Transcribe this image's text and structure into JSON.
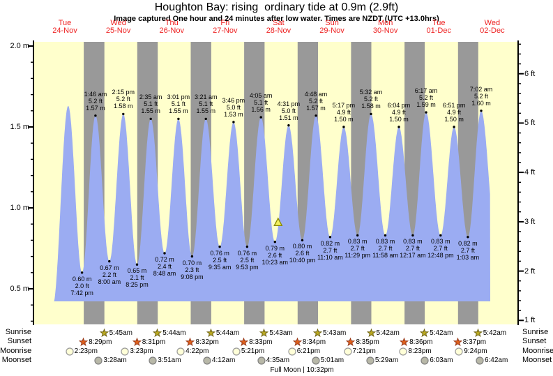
{
  "header": {
    "title": "Houghton Bay: rising  ordinary tide at 0.9m (2.9ft)",
    "subtitle": "Image captured One hour and 24 minutes after low water. Times are NZDT (UTC +13.0hrs)"
  },
  "colors": {
    "plot_background": "#ffffcc",
    "night_band": "#999999",
    "tide_area": "#9bacf2",
    "day_label_red": "#ee2222",
    "axis_black": "#000000",
    "marker_fill": "#f2ef5e",
    "marker_stroke": "#8a8a00",
    "sunrise_star_fill": "#b9a820",
    "sunrise_star_stroke": "#6f6414",
    "sunset_star_fill": "#e0601c",
    "sunset_star_stroke": "#973818",
    "moonrise_circle_fill": "#ffffd8",
    "moonrise_circle_stroke": "#999999",
    "moonset_circle_fill": "#b8b8a8",
    "moonset_circle_stroke": "#808080"
  },
  "chart_data": {
    "type": "area",
    "title": "Houghton Bay: rising ordinary tide at 0.9m (2.9ft)",
    "ylabel_left_unit": "m",
    "ylabel_right_unit": "ft",
    "ylim_m": [
      0.29,
      2.03
    ],
    "grid": false,
    "days": [
      {
        "name": "Tue",
        "date": "24-Nov"
      },
      {
        "name": "Wed",
        "date": "25-Nov"
      },
      {
        "name": "Thu",
        "date": "26-Nov"
      },
      {
        "name": "Fri",
        "date": "27-Nov"
      },
      {
        "name": "Sat",
        "date": "28-Nov"
      },
      {
        "name": "Sun",
        "date": "29-Nov"
      },
      {
        "name": "Mon",
        "date": "30-Nov"
      },
      {
        "name": "Tue",
        "date": "01-Dec"
      },
      {
        "name": "Wed",
        "date": "02-Dec"
      }
    ],
    "y_ticks_left": [
      {
        "label": "0.5 m",
        "value": 0.5
      },
      {
        "label": "1.0 m",
        "value": 1.0
      },
      {
        "label": "1.5 m",
        "value": 1.5
      },
      {
        "label": "2.0 m",
        "value": 2.0
      }
    ],
    "y_ticks_right": [
      {
        "label": "1 ft",
        "value": 1
      },
      {
        "label": "2 ft",
        "value": 2
      },
      {
        "label": "3 ft",
        "value": 3
      },
      {
        "label": "4 ft",
        "value": 4
      },
      {
        "label": "5 ft",
        "value": 5
      },
      {
        "label": "6 ft",
        "value": 6
      }
    ],
    "curve_end_t": 203.1,
    "extremes": [
      {
        "t": 6.6,
        "h": 0.4,
        "type": "low",
        "labeled": false
      },
      {
        "t": 13.5,
        "h": 1.63,
        "type": "high",
        "labeled": false
      },
      {
        "t": 19.7,
        "h": 0.6,
        "type": "low",
        "labeled": true,
        "m": "0.60 m",
        "ft": "2.0 ft",
        "time": "7:42 pm"
      },
      {
        "t": 25.767,
        "h": 1.57,
        "type": "high",
        "labeled": true,
        "m": "1.57 m",
        "ft": "5.2 ft",
        "time": "1:46 am"
      },
      {
        "t": 32.0,
        "h": 0.67,
        "type": "low",
        "labeled": true,
        "m": "0.67 m",
        "ft": "2.2 ft",
        "time": "8:00 am"
      },
      {
        "t": 38.25,
        "h": 1.58,
        "type": "high",
        "labeled": true,
        "m": "1.58 m",
        "ft": "5.2 ft",
        "time": "2:15 pm"
      },
      {
        "t": 44.417,
        "h": 0.65,
        "type": "low",
        "labeled": true,
        "m": "0.65 m",
        "ft": "2.1 ft",
        "time": "8:25 pm"
      },
      {
        "t": 50.583,
        "h": 1.55,
        "type": "high",
        "labeled": true,
        "m": "1.55 m",
        "ft": "5.1 ft",
        "time": "2:35 am"
      },
      {
        "t": 56.8,
        "h": 0.72,
        "type": "low",
        "labeled": true,
        "m": "0.72 m",
        "ft": "2.4 ft",
        "time": "8:48 am"
      },
      {
        "t": 63.017,
        "h": 1.55,
        "type": "high",
        "labeled": true,
        "m": "1.55 m",
        "ft": "5.1 ft",
        "time": "3:01 pm"
      },
      {
        "t": 69.133,
        "h": 0.7,
        "type": "low",
        "labeled": true,
        "m": "0.70 m",
        "ft": "2.3 ft",
        "time": "9:08 pm"
      },
      {
        "t": 75.35,
        "h": 1.55,
        "type": "high",
        "labeled": true,
        "m": "1.55 m",
        "ft": "5.1 ft",
        "time": "3:21 am"
      },
      {
        "t": 81.583,
        "h": 0.76,
        "type": "low",
        "labeled": true,
        "m": "0.76 m",
        "ft": "2.5 ft",
        "time": "9:35 am"
      },
      {
        "t": 87.767,
        "h": 1.53,
        "type": "high",
        "labeled": true,
        "m": "1.53 m",
        "ft": "5.0 ft",
        "time": "3:46 pm"
      },
      {
        "t": 93.883,
        "h": 0.76,
        "type": "low",
        "labeled": true,
        "m": "0.76 m",
        "ft": "2.5 ft",
        "time": "9:53 pm"
      },
      {
        "t": 100.083,
        "h": 1.56,
        "type": "high",
        "labeled": true,
        "m": "1.56 m",
        "ft": "5.1 ft",
        "time": "4:05 am"
      },
      {
        "t": 106.383,
        "h": 0.79,
        "type": "low",
        "labeled": true,
        "m": "0.79 m",
        "ft": "2.6 ft",
        "time": "10:23 am"
      },
      {
        "t": 112.517,
        "h": 1.51,
        "type": "high",
        "labeled": true,
        "m": "1.51 m",
        "ft": "5.0 ft",
        "time": "4:31 pm"
      },
      {
        "t": 118.667,
        "h": 0.8,
        "type": "low",
        "labeled": true,
        "m": "0.80 m",
        "ft": "2.6 ft",
        "time": "10:40 pm"
      },
      {
        "t": 124.8,
        "h": 1.57,
        "type": "high",
        "labeled": true,
        "m": "1.57 m",
        "ft": "5.2 ft",
        "time": "4:48 am"
      },
      {
        "t": 131.167,
        "h": 0.82,
        "type": "low",
        "labeled": true,
        "m": "0.82 m",
        "ft": "2.7 ft",
        "time": "11:10 am"
      },
      {
        "t": 137.283,
        "h": 1.5,
        "type": "high",
        "labeled": true,
        "m": "1.50 m",
        "ft": "4.9 ft",
        "time": "5:17 pm"
      },
      {
        "t": 143.483,
        "h": 0.83,
        "type": "low",
        "labeled": true,
        "m": "0.83 m",
        "ft": "2.7 ft",
        "time": "11:29 pm"
      },
      {
        "t": 149.533,
        "h": 1.58,
        "type": "high",
        "labeled": true,
        "m": "1.58 m",
        "ft": "5.2 ft",
        "time": "5:32 am"
      },
      {
        "t": 155.967,
        "h": 0.83,
        "type": "low",
        "labeled": true,
        "m": "0.83 m",
        "ft": "2.7 ft",
        "time": "11:58 am"
      },
      {
        "t": 162.067,
        "h": 1.5,
        "type": "high",
        "labeled": true,
        "m": "1.50 m",
        "ft": "4.9 ft",
        "time": "6:04 pm"
      },
      {
        "t": 168.283,
        "h": 0.83,
        "type": "low",
        "labeled": true,
        "m": "0.83 m",
        "ft": "2.7 ft",
        "time": "12:17 am"
      },
      {
        "t": 174.283,
        "h": 1.59,
        "type": "high",
        "labeled": true,
        "m": "1.59 m",
        "ft": "5.2 ft",
        "time": "6:17 am"
      },
      {
        "t": 180.8,
        "h": 0.83,
        "type": "low",
        "labeled": true,
        "m": "0.83 m",
        "ft": "2.7 ft",
        "time": "12:48 pm"
      },
      {
        "t": 186.85,
        "h": 1.5,
        "type": "high",
        "labeled": true,
        "m": "1.50 m",
        "ft": "4.9 ft",
        "time": "6:51 pm"
      },
      {
        "t": 193.05,
        "h": 0.82,
        "type": "low",
        "labeled": true,
        "m": "0.82 m",
        "ft": "2.7 ft",
        "time": "1:03 am"
      },
      {
        "t": 199.033,
        "h": 1.6,
        "type": "high",
        "labeled": true,
        "m": "1.60 m",
        "ft": "5.2 ft",
        "time": "7:02 am"
      },
      {
        "t": 205.5,
        "h": 0.84,
        "type": "low",
        "labeled": false
      }
    ],
    "current_tide_marker": {
      "t": 107.8,
      "height_m": 0.91
    }
  },
  "events": {
    "rows": [
      {
        "label": "Sunrise",
        "icon": "sunrise-star",
        "times": [
          {
            "time": "5:45am",
            "t": 29.75
          },
          {
            "time": "5:44am",
            "t": 53.733
          },
          {
            "time": "5:44am",
            "t": 77.733
          },
          {
            "time": "5:43am",
            "t": 101.717
          },
          {
            "time": "5:43am",
            "t": 125.717
          },
          {
            "time": "5:42am",
            "t": 149.7
          },
          {
            "time": "5:42am",
            "t": 173.7
          },
          {
            "time": "5:42am",
            "t": 197.7
          }
        ]
      },
      {
        "label": "Sunset",
        "icon": "sunset-star",
        "times": [
          {
            "time": "8:29pm",
            "t": 20.483
          },
          {
            "time": "8:31pm",
            "t": 44.517
          },
          {
            "time": "8:32pm",
            "t": 68.533
          },
          {
            "time": "8:33pm",
            "t": 92.55
          },
          {
            "time": "8:34pm",
            "t": 116.567
          },
          {
            "time": "8:35pm",
            "t": 140.583
          },
          {
            "time": "8:36pm",
            "t": 164.6
          },
          {
            "time": "8:37pm",
            "t": 188.617
          }
        ]
      },
      {
        "label": "Moonrise",
        "icon": "moonrise-circle",
        "times": [
          {
            "time": "2:23pm",
            "t": 14.383
          },
          {
            "time": "3:23pm",
            "t": 39.383
          },
          {
            "time": "4:22pm",
            "t": 64.367
          },
          {
            "time": "5:21pm",
            "t": 89.35
          },
          {
            "time": "6:21pm",
            "t": 114.35
          },
          {
            "time": "7:21pm",
            "t": 139.35
          },
          {
            "time": "8:23pm",
            "t": 164.383
          },
          {
            "time": "9:24pm",
            "t": 189.4
          }
        ]
      },
      {
        "label": "Moonset",
        "icon": "moonset-circle",
        "times": [
          {
            "time": "3:28am",
            "t": 27.467
          },
          {
            "time": "3:51am",
            "t": 51.85
          },
          {
            "time": "4:12am",
            "t": 76.2
          },
          {
            "time": "4:35am",
            "t": 100.583
          },
          {
            "time": "5:01am",
            "t": 125.017
          },
          {
            "time": "5:29am",
            "t": 149.483
          },
          {
            "time": "6:03am",
            "t": 174.05
          },
          {
            "time": "6:42am",
            "t": 198.7
          }
        ]
      },
      {
        "label": "",
        "icon": "",
        "times": []
      }
    ],
    "full_moon": {
      "label": "Full Moon",
      "separator": "|",
      "time": "10:32pm",
      "t": 118.533
    }
  }
}
